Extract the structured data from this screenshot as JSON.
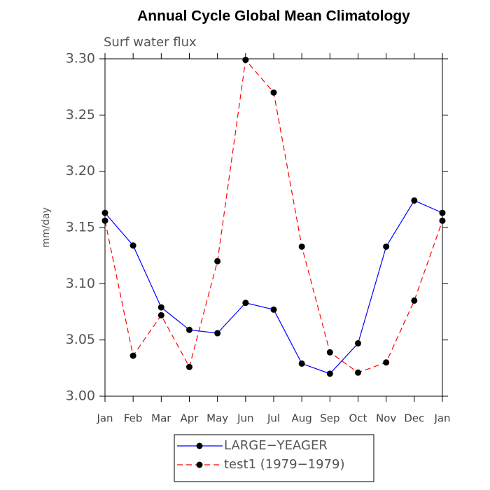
{
  "chart_data": {
    "type": "line",
    "title": "Annual Cycle Global Mean Climatology",
    "subtitle": "Surf water flux",
    "y_label": "mm/day",
    "categories": [
      "Jan",
      "Feb",
      "Mar",
      "Apr",
      "May",
      "Jun",
      "Jul",
      "Aug",
      "Sep",
      "Oct",
      "Nov",
      "Dec",
      "Jan"
    ],
    "series": [
      {
        "name": "LARGE−YEAGER",
        "color": "#0000ff",
        "linestyle": "solid",
        "values": [
          3.163,
          3.134,
          3.079,
          3.059,
          3.056,
          3.083,
          3.077,
          3.029,
          3.02,
          3.047,
          3.133,
          3.174,
          3.163
        ]
      },
      {
        "name": "test1 (1979−1979)",
        "color": "#ff0000",
        "linestyle": "dashed",
        "values": [
          3.156,
          3.036,
          3.072,
          3.026,
          3.12,
          3.299,
          3.27,
          3.133,
          3.039,
          3.021,
          3.03,
          3.085,
          3.156
        ]
      }
    ],
    "ylim": [
      3.0,
      3.3
    ],
    "yticks": [
      {
        "value": 3.0,
        "label": "3.00"
      },
      3.05,
      {
        "value": 3.1,
        "label": "3.10"
      },
      3.15,
      {
        "value": 3.2,
        "label": "3.20"
      },
      3.25,
      {
        "value": 3.3,
        "label": "3.30"
      }
    ],
    "grid": false,
    "legend": "bottom"
  }
}
